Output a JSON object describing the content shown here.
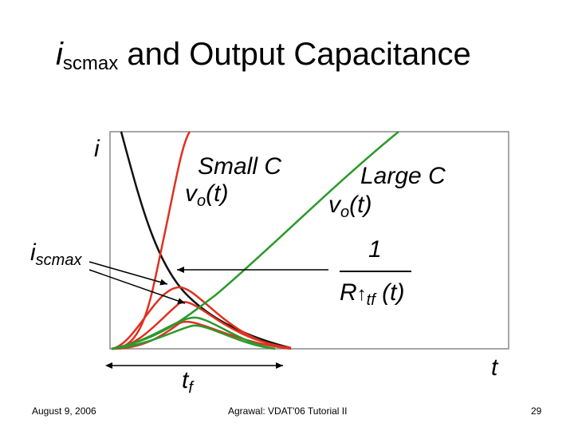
{
  "title": {
    "var": "i",
    "sub": "scmax",
    "rest": "and Output Capacitance"
  },
  "axis": {
    "y_label": "i",
    "x_label": "t"
  },
  "labels": {
    "small_c": "Small C",
    "small_v": "v",
    "small_v_sub": "o",
    "small_v_rest": "(t)",
    "large_c": "Large C",
    "large_v": "v",
    "large_v_sub": "o",
    "large_v_rest": "(t)",
    "iscmax_main": "i",
    "iscmax_sub": "scmax",
    "fraction_num": "1",
    "fraction_den_r": "R",
    "fraction_den_sub": "tf",
    "fraction_den_rest": "(t)",
    "tf_main": "t",
    "tf_sub": "f"
  },
  "footer": {
    "date": "August 9, 2006",
    "source": "Agrawal: VDAT'06 Tutorial II",
    "page": "29"
  },
  "colors": {
    "small_c": "#e03020",
    "large_c": "#2a9a2a",
    "inverse": "#111111",
    "frame": "#888888"
  }
}
